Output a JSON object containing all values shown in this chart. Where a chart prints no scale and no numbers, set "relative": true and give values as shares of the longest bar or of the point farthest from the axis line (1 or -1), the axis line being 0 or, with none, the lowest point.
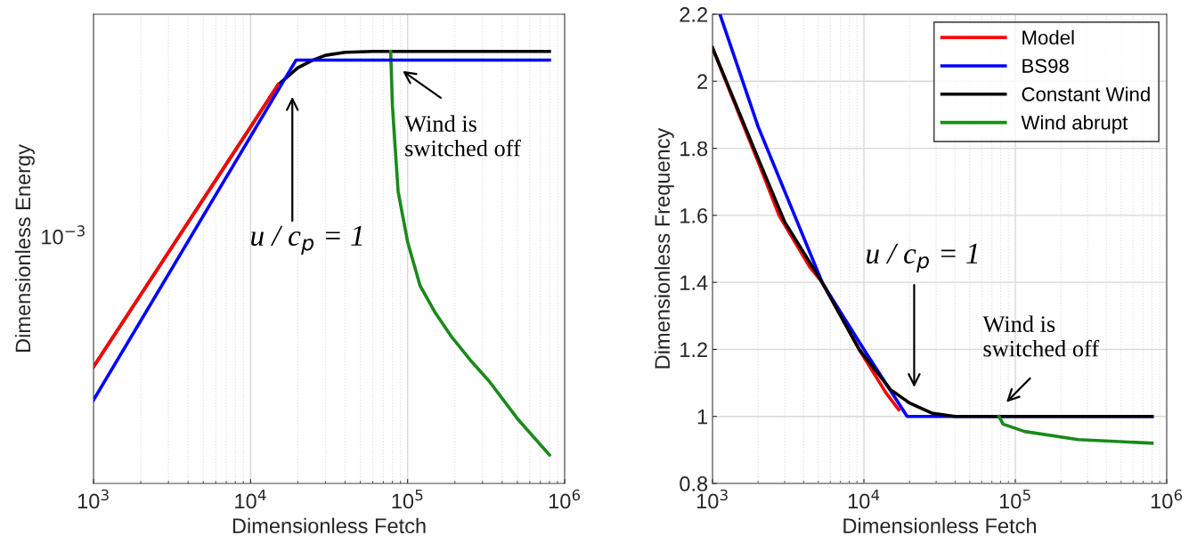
{
  "chart_data": [
    {
      "type": "line",
      "xlabel": "Dimensionless Fetch",
      "ylabel": "Dimensionless Energy",
      "log": "x",
      "grid": "x",
      "relative": true,
      "xlim": [
        1000,
        1000000
      ],
      "xticks": [
        {
          "value": 1000,
          "label": "10$^{3}$"
        },
        {
          "value": 10000,
          "label": "10$^{4}$"
        },
        {
          "value": 100000,
          "label": "10$^{5}$"
        },
        {
          "value": 1000000,
          "label": "10$^{6}$"
        }
      ],
      "series": [
        {
          "color": "#000000",
          "x": [
            1000,
            10000,
            15000,
            20000,
            25000,
            30000,
            40000,
            60000,
            800000
          ],
          "values": [
            0.27,
            0.825,
            0.923,
            0.962,
            0.98,
            0.991,
            0.998,
            1.0,
            1.0
          ]
        },
        {
          "color": "#1a8a1a",
          "x": [
            78000,
            79000,
            80000,
            87000,
            100000,
            120000,
            150000,
            190000,
            250000,
            330000,
            500000,
            800000
          ],
          "values": [
            1.0,
            0.94,
            0.875,
            0.676,
            0.559,
            0.458,
            0.395,
            0.34,
            0.286,
            0.237,
            0.15,
            0.066
          ]
        },
        {
          "color": "#ff0000",
          "x": [
            1000,
            15000
          ],
          "values": [
            0.27,
            0.923
          ]
        },
        {
          "color": "#0000ff",
          "x": [
            1000,
            19500,
            800000
          ],
          "values": [
            0.193,
            0.98,
            0.98
          ]
        }
      ],
      "annotations": [
        "10$^{−3}$",
        "u / c$_{p}$ = 1",
        "Wind is\nswitched off"
      ]
    },
    {
      "type": "line",
      "xlabel": "Dimensionless Fetch",
      "ylabel": "Dimensionless Frequency",
      "log": "x",
      "grid": true,
      "legend": "top right",
      "xlim": [
        1000,
        1000000
      ],
      "xticks": [
        {
          "value": 1000,
          "label": "10$^{3}$"
        },
        {
          "value": 10000,
          "label": "10$^{4}$"
        },
        {
          "value": 100000,
          "label": "10$^{5}$"
        },
        {
          "value": 1000000,
          "label": "10$^{6}$"
        }
      ],
      "ylim": [
        0.8,
        2.2
      ],
      "yticks": [
        0.8,
        1,
        1.2,
        1.4,
        1.6,
        1.8,
        2,
        2.2
      ],
      "series": [
        {
          "name": "Model",
          "color": "#ff0000",
          "x": [
            1000,
            1500,
            2000,
            2750,
            4400,
            5300,
            9300,
            14000,
            17000
          ],
          "values": [
            2.1,
            1.9,
            1.76,
            1.6,
            1.445,
            1.4,
            1.2,
            1.07,
            1.02
          ]
        },
        {
          "name": "BS98",
          "color": "#0000ff",
          "x": [
            1120,
            2000,
            5330,
            10000,
            19300,
            800000
          ],
          "values": [
            2.2,
            1.865,
            1.397,
            1.2,
            1.0,
            1.0
          ]
        },
        {
          "name": "Constant Wind",
          "color": "#000000",
          "x": [
            1000,
            2000,
            3000,
            5300,
            9300,
            15000,
            20000,
            28000,
            40000,
            800000
          ],
          "values": [
            2.1,
            1.77,
            1.58,
            1.4,
            1.2,
            1.08,
            1.04,
            1.01,
            1.0,
            1.0
          ]
        },
        {
          "name": "Wind abrupt",
          "color": "#1a8a1a",
          "x": [
            78000,
            83000,
            115000,
            260000,
            800000
          ],
          "values": [
            1.0,
            0.977,
            0.955,
            0.931,
            0.92
          ]
        }
      ],
      "annotations": [
        "u / c$_{p}$ = 1",
        "Wind is\nswitched off"
      ]
    }
  ]
}
